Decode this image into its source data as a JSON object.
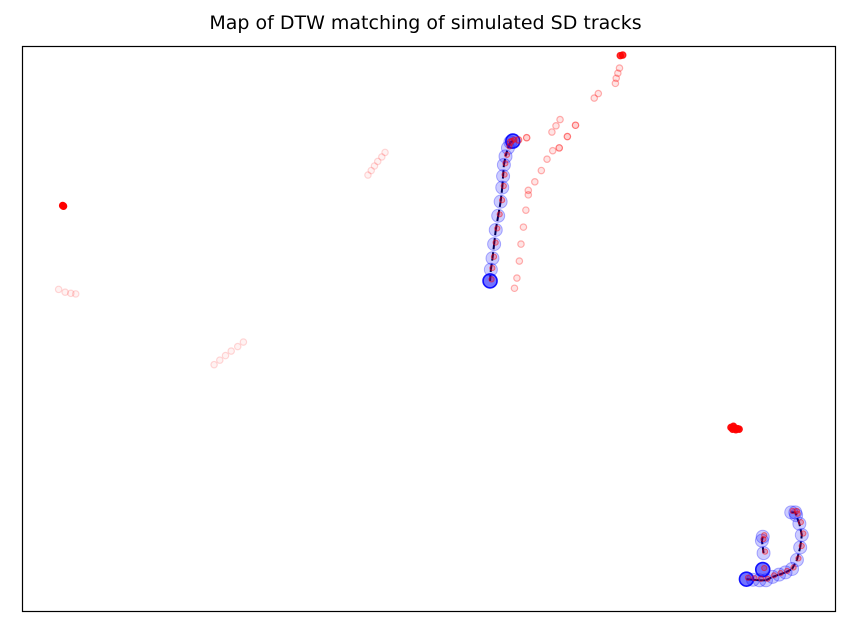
{
  "chart_data": {
    "type": "scatter",
    "title": "Map of DTW matching of simulated SD tracks",
    "xlabel": "",
    "ylabel": "",
    "xlim": [
      0,
      100
    ],
    "ylim": [
      0,
      100
    ],
    "grid": false,
    "colors": {
      "sd_points": "#ff0000",
      "matched_points": "#0000ff",
      "match_path": "#000033"
    },
    "series": [
      {
        "group": "sd_tracks",
        "tracks": [
          {
            "opacity": 0.15,
            "points": [
              [
                4.5,
                57.0
              ],
              [
                5.3,
                56.5
              ],
              [
                6.0,
                56.3
              ],
              [
                6.6,
                56.2
              ]
            ]
          },
          {
            "opacity": 1.0,
            "points": [
              [
                5.0,
                71.8
              ],
              [
                5.1,
                71.7
              ]
            ]
          },
          {
            "opacity": 0.15,
            "points": [
              [
                23.6,
                43.7
              ],
              [
                24.3,
                44.5
              ],
              [
                25.0,
                45.3
              ],
              [
                25.7,
                46.1
              ],
              [
                26.5,
                46.9
              ],
              [
                27.2,
                47.7
              ]
            ]
          },
          {
            "opacity": 0.15,
            "points": [
              [
                42.5,
                77.2
              ],
              [
                42.9,
                78.0
              ],
              [
                43.3,
                78.8
              ],
              [
                43.7,
                79.6
              ],
              [
                44.2,
                80.4
              ],
              [
                44.6,
                81.2
              ]
            ]
          },
          {
            "opacity": 0.3,
            "points": [
              [
                60.5,
                57.2
              ],
              [
                60.8,
                59.0
              ],
              [
                61.1,
                62.0
              ],
              [
                61.3,
                65.0
              ],
              [
                61.6,
                68.0
              ],
              [
                61.9,
                71.0
              ],
              [
                62.2,
                73.7
              ]
            ]
          },
          {
            "opacity": 0.3,
            "points": [
              [
                62.2,
                74.5
              ],
              [
                63.0,
                76.0
              ],
              [
                63.8,
                78.0
              ],
              [
                64.5,
                80.0
              ],
              [
                65.2,
                81.5
              ]
            ]
          },
          {
            "opacity": 0.5,
            "points": [
              [
                66.0,
                82.0
              ],
              [
                67.0,
                84.0
              ],
              [
                68.0,
                86.0
              ]
            ]
          },
          {
            "opacity": 0.3,
            "points": [
              [
                65.1,
                84.8
              ],
              [
                65.6,
                85.9
              ],
              [
                66.1,
                87.0
              ]
            ]
          },
          {
            "opacity": 0.3,
            "points": [
              [
                70.3,
                90.8
              ],
              [
                70.8,
                91.6
              ]
            ]
          },
          {
            "opacity": 0.3,
            "points": [
              [
                72.9,
                93.4
              ],
              [
                73.0,
                94.3
              ],
              [
                73.2,
                95.2
              ],
              [
                73.4,
                96.1
              ]
            ]
          },
          {
            "opacity": 0.8,
            "points": [
              [
                73.5,
                98.3
              ],
              [
                73.8,
                98.4
              ]
            ]
          },
          {
            "opacity": 0.5,
            "points": [
              [
                60.0,
                83.0
              ],
              [
                61.0,
                83.4
              ],
              [
                62.0,
                83.8
              ]
            ]
          },
          {
            "opacity": 0.9,
            "points": [
              [
                87.1,
                32.6
              ],
              [
                87.3,
                32.3
              ],
              [
                87.5,
                32.5
              ],
              [
                87.7,
                32.2
              ],
              [
                87.9,
                32.4
              ],
              [
                88.1,
                32.3
              ],
              [
                87.4,
                32.8
              ]
            ]
          }
        ]
      },
      {
        "group": "matched_track_1",
        "points": [
          [
            57.5,
            58.5
          ],
          [
            57.6,
            60.5
          ],
          [
            57.8,
            62.5
          ],
          [
            58.0,
            65.0
          ],
          [
            58.2,
            67.5
          ],
          [
            58.5,
            70.0
          ],
          [
            58.8,
            72.5
          ],
          [
            59.0,
            75.0
          ],
          [
            59.1,
            77.0
          ],
          [
            59.2,
            79.0
          ],
          [
            59.4,
            80.5
          ],
          [
            59.7,
            82.0
          ],
          [
            60.0,
            83.0
          ],
          [
            60.3,
            83.2
          ]
        ]
      },
      {
        "group": "matched_track_2",
        "points": [
          [
            89.0,
            5.8
          ],
          [
            89.8,
            5.7
          ],
          [
            90.6,
            5.6
          ],
          [
            91.4,
            5.6
          ],
          [
            92.2,
            6.2
          ],
          [
            93.0,
            6.6
          ],
          [
            93.8,
            7.0
          ],
          [
            94.6,
            7.6
          ],
          [
            95.2,
            9.2
          ],
          [
            95.6,
            11.4
          ],
          [
            95.8,
            13.6
          ],
          [
            95.5,
            15.6
          ],
          [
            95.1,
            17.1
          ],
          [
            95.0,
            17.6
          ],
          [
            94.5,
            17.6
          ],
          [
            91.1,
            10.4
          ],
          [
            90.9,
            12.6
          ],
          [
            91.0,
            13.3
          ],
          [
            91.0,
            7.5
          ]
        ]
      }
    ]
  }
}
